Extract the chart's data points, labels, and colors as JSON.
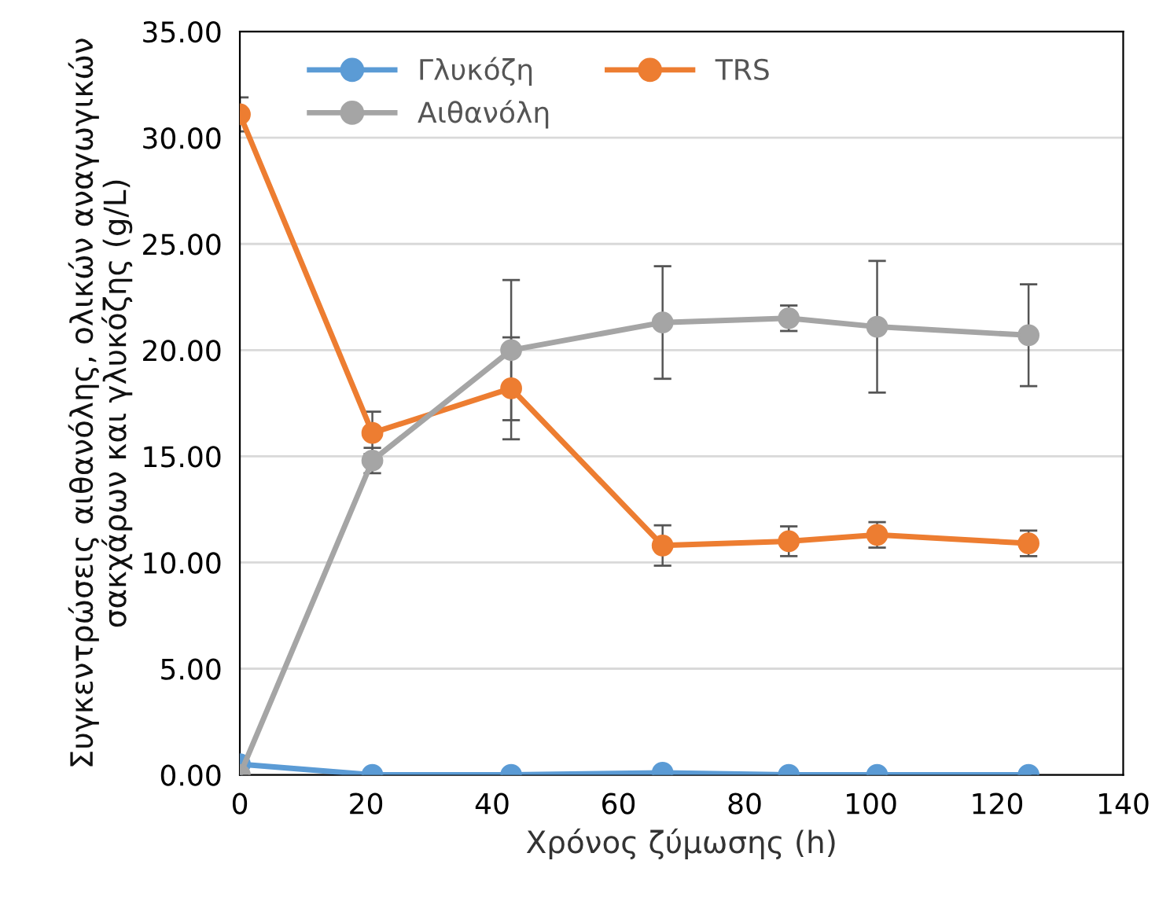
{
  "chart_data": {
    "type": "line",
    "xlabel": "Χρόνος ζύμωσης (h)",
    "ylabel": "Συγκεντρώσεις αιθανόλης, ολικών αναγωγικών\nσακχάρων και γλυκόζης (g/L)",
    "x": [
      0,
      21,
      43,
      67,
      87,
      101,
      125
    ],
    "series": [
      {
        "name": "Γλυκόζη",
        "color": "#5b9bd5",
        "values": [
          0.5,
          0,
          0,
          0.1,
          0,
          0,
          0
        ]
      },
      {
        "name": "TRS",
        "color": "#ed7d31",
        "values": [
          31.1,
          16.1,
          18.2,
          10.8,
          11.0,
          11.3,
          10.9
        ],
        "errors": [
          0.8,
          1.0,
          2.4,
          0.95,
          0.7,
          0.6,
          0.6
        ]
      },
      {
        "name": "Αιθανόλη",
        "color": "#a5a5a5",
        "values": [
          0,
          14.8,
          20.0,
          21.3,
          21.5,
          21.1,
          20.7
        ],
        "errors": [
          null,
          0.6,
          3.3,
          2.65,
          0.6,
          3.1,
          2.4
        ]
      }
    ],
    "xlim": [
      0,
      140
    ],
    "xticks": [
      0,
      20,
      40,
      60,
      80,
      100,
      120,
      140
    ],
    "ylim": [
      0,
      35
    ],
    "yticks": [
      {
        "value": 0,
        "label": "0.00"
      },
      {
        "value": 5,
        "label": "5.00"
      },
      {
        "value": 10,
        "label": "10.00"
      },
      {
        "value": 15,
        "label": "15.00"
      },
      {
        "value": 20,
        "label": "20.00"
      },
      {
        "value": 25,
        "label": "25.00"
      },
      {
        "value": 30,
        "label": "30.00"
      },
      {
        "value": 35,
        "label": "35.00"
      }
    ],
    "grid": "y",
    "legend": "top left",
    "marker": "circle",
    "line_style": "solid"
  }
}
